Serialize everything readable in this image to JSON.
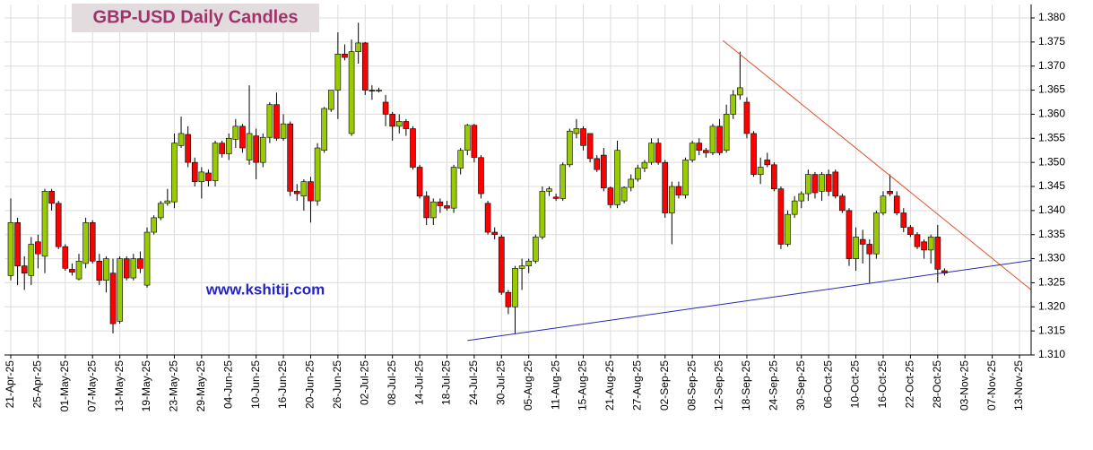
{
  "chart_data": {
    "type": "candlestick",
    "title": "GBP-USD Daily Candles",
    "watermark": "www.kshitij.com",
    "categories": [
      "21-Apr-25",
      null,
      null,
      null,
      "25-Apr-25",
      null,
      null,
      null,
      "01-May-25",
      null,
      null,
      null,
      "07-May-25",
      null,
      null,
      null,
      "13-May-25",
      null,
      null,
      null,
      "19-May-25",
      null,
      null,
      null,
      "23-May-25",
      null,
      null,
      null,
      "29-May-25",
      null,
      null,
      null,
      "04-Jun-25",
      null,
      null,
      null,
      "10-Jun-25",
      null,
      null,
      null,
      "16-Jun-25",
      null,
      null,
      null,
      "20-Jun-25",
      null,
      null,
      null,
      "26-Jun-25",
      null,
      null,
      null,
      "02-Jul-25",
      null,
      null,
      null,
      "08-Jul-25",
      null,
      null,
      null,
      "14-Jul-25",
      null,
      null,
      null,
      "18-Jul-25",
      null,
      null,
      null,
      "24-Jul-25",
      null,
      null,
      null,
      "30-Jul-25",
      null,
      null,
      null,
      "05-Aug-25",
      null,
      null,
      null,
      "11-Aug-25",
      null,
      null,
      null,
      "15-Aug-25",
      null,
      null,
      null,
      "21-Aug-25",
      null,
      null,
      null,
      "27-Aug-25",
      null,
      null,
      null,
      "02-Sep-25",
      null,
      null,
      null,
      "08-Sep-25",
      null,
      null,
      null,
      "12-Sep-25",
      null,
      null,
      null,
      "18-Sep-25",
      null,
      null,
      null,
      "24-Sep-25",
      null,
      null,
      null,
      "30-Sep-25",
      null,
      null,
      null,
      "06-Oct-25",
      null,
      null,
      null,
      "10-Oct-25",
      null,
      null,
      null,
      "16-Oct-25",
      null,
      null,
      null,
      "22-Oct-25",
      null,
      null,
      null,
      "28-Oct-25",
      null,
      null,
      null,
      "03-Nov-25",
      null,
      null,
      null,
      "07-Nov-25",
      null,
      null,
      null,
      "13-Nov-25"
    ],
    "open": [
      1.3265,
      1.3375,
      1.3285,
      1.3265,
      1.3335,
      1.3305,
      1.344,
      1.3415,
      1.3325,
      1.3278,
      1.3258,
      1.329,
      1.3375,
      1.3295,
      1.3255,
      1.327,
      1.317,
      1.33,
      1.326,
      1.33,
      1.3245,
      1.3355,
      1.3385,
      1.3415,
      1.3418,
      1.3535,
      1.3558,
      1.35,
      1.346,
      1.3478,
      1.3462,
      1.354,
      1.3518,
      1.3548,
      1.3575,
      1.3505,
      1.3555,
      1.35,
      1.3552,
      1.362,
      1.355,
      1.358,
      1.344,
      1.343,
      1.346,
      1.342,
      1.3525,
      1.361,
      1.365,
      1.3725,
      1.356,
      1.373,
      1.3748,
      1.365,
      1.3648,
      1.3625,
      1.36,
      1.3575,
      1.3585,
      1.357,
      1.349,
      1.343,
      1.3385,
      1.3418,
      1.341,
      1.3405,
      1.3488,
      1.3525,
      1.3577,
      1.351,
      1.3415,
      1.3355,
      1.3345,
      1.323,
      1.32,
      1.328,
      1.3285,
      1.3295,
      1.3345,
      1.344,
      1.3428,
      1.3425,
      1.3495,
      1.356,
      1.357,
      1.356,
      1.3508,
      1.3515,
      1.3447,
      1.3412,
      1.342,
      1.3448,
      1.3465,
      1.3488,
      1.35,
      1.354,
      1.35,
      1.3395,
      1.345,
      1.3432,
      1.3505,
      1.354,
      1.3525,
      1.352,
      1.3575,
      1.3525,
      1.36,
      1.364,
      1.3625,
      1.356,
      1.3475,
      1.3505,
      1.3495,
      1.3445,
      1.333,
      1.3392,
      1.342,
      1.3435,
      1.3475,
      1.344,
      1.3475,
      1.348,
      1.343,
      1.34,
      1.33,
      1.334,
      1.333,
      1.331,
      1.3395,
      1.344,
      1.343,
      1.3395,
      1.3365,
      1.335,
      1.3335,
      1.3318,
      1.3345,
      1.3275,
      null,
      null,
      null,
      null,
      null,
      null,
      null,
      null,
      null,
      null,
      null
    ],
    "high": [
      1.3425,
      1.3385,
      1.3305,
      1.3345,
      1.335,
      1.3445,
      1.3445,
      1.342,
      1.333,
      1.329,
      1.331,
      1.3385,
      1.338,
      1.331,
      1.3305,
      1.33,
      1.3305,
      1.3305,
      1.331,
      1.3315,
      1.3365,
      1.339,
      1.342,
      1.3445,
      1.356,
      1.3595,
      1.3575,
      1.351,
      1.349,
      1.3485,
      1.3545,
      1.3545,
      1.356,
      1.359,
      1.358,
      1.366,
      1.357,
      1.356,
      1.3625,
      1.3645,
      1.36,
      1.3585,
      1.3455,
      1.3465,
      1.347,
      1.354,
      1.3615,
      1.365,
      1.377,
      1.3745,
      1.3755,
      1.379,
      1.375,
      1.366,
      1.3655,
      1.364,
      1.3605,
      1.36,
      1.359,
      1.3575,
      1.3495,
      1.344,
      1.3425,
      1.3425,
      1.342,
      1.3495,
      1.353,
      1.358,
      1.358,
      1.3515,
      1.342,
      1.3365,
      1.335,
      1.3235,
      1.3285,
      1.33,
      1.33,
      1.335,
      1.345,
      1.345,
      1.3435,
      1.35,
      1.357,
      1.359,
      1.3575,
      1.356,
      1.3515,
      1.353,
      1.345,
      1.3545,
      1.345,
      1.3475,
      1.3495,
      1.3505,
      1.355,
      1.355,
      1.3505,
      1.346,
      1.346,
      1.351,
      1.3545,
      1.355,
      1.353,
      1.358,
      1.359,
      1.362,
      1.365,
      1.373,
      1.3635,
      1.3565,
      1.351,
      1.352,
      1.35,
      1.345,
      1.34,
      1.343,
      1.344,
      1.3485,
      1.348,
      1.348,
      1.3485,
      1.3485,
      1.3435,
      1.3405,
      1.3365,
      1.336,
      1.334,
      1.34,
      1.344,
      1.3475,
      1.344,
      1.3405,
      1.337,
      1.3355,
      1.334,
      1.335,
      1.337,
      1.328,
      null,
      null,
      null,
      null,
      null,
      null,
      null,
      null,
      null,
      null,
      null
    ],
    "low": [
      1.3255,
      1.3245,
      1.3235,
      1.3245,
      1.328,
      1.327,
      1.34,
      1.332,
      1.3275,
      1.3265,
      1.3255,
      1.328,
      1.329,
      1.3245,
      1.323,
      1.3145,
      1.3165,
      1.3255,
      1.3255,
      1.327,
      1.324,
      1.335,
      1.338,
      1.341,
      1.3405,
      1.353,
      1.349,
      1.345,
      1.3425,
      1.345,
      1.345,
      1.351,
      1.3505,
      1.353,
      1.352,
      1.3495,
      1.3465,
      1.349,
      1.354,
      1.3545,
      1.3545,
      1.343,
      1.342,
      1.34,
      1.3375,
      1.341,
      1.352,
      1.3605,
      1.359,
      1.3712,
      1.3555,
      1.3705,
      1.364,
      1.363,
      1.3645,
      1.3575,
      1.3545,
      1.356,
      1.3555,
      1.3485,
      1.3425,
      1.337,
      1.337,
      1.3395,
      1.34,
      1.3395,
      1.3475,
      1.3515,
      1.35,
      1.3425,
      1.335,
      1.334,
      1.3225,
      1.3185,
      1.3145,
      1.3235,
      1.327,
      1.329,
      1.334,
      1.343,
      1.342,
      1.342,
      1.349,
      1.355,
      1.3525,
      1.35,
      1.348,
      1.344,
      1.3405,
      1.3405,
      1.3415,
      1.344,
      1.346,
      1.348,
      1.3495,
      1.3495,
      1.3385,
      1.333,
      1.3425,
      1.3425,
      1.35,
      1.3515,
      1.351,
      1.3515,
      1.3515,
      1.352,
      1.359,
      1.363,
      1.355,
      1.347,
      1.3455,
      1.349,
      1.344,
      1.332,
      1.3325,
      1.3385,
      1.3405,
      1.342,
      1.3425,
      1.342,
      1.343,
      1.3425,
      1.3395,
      1.3285,
      1.3275,
      1.329,
      1.325,
      1.33,
      1.339,
      1.343,
      1.339,
      1.3355,
      1.3345,
      1.332,
      1.33,
      1.329,
      1.325,
      1.3265,
      null,
      null,
      null,
      null,
      null,
      null,
      null,
      null,
      null,
      null,
      null
    ],
    "close": [
      1.3375,
      1.3285,
      1.327,
      1.333,
      1.331,
      1.344,
      1.3415,
      1.3325,
      1.328,
      1.3272,
      1.3295,
      1.3375,
      1.3295,
      1.3255,
      1.33,
      1.3165,
      1.33,
      1.326,
      1.33,
      1.328,
      1.3355,
      1.3385,
      1.3415,
      1.342,
      1.354,
      1.356,
      1.35,
      1.346,
      1.348,
      1.3462,
      1.354,
      1.3518,
      1.355,
      1.3575,
      1.353,
      1.356,
      1.35,
      1.3552,
      1.362,
      1.355,
      1.358,
      1.344,
      1.3435,
      1.346,
      1.342,
      1.353,
      1.3612,
      1.365,
      1.3725,
      1.3718,
      1.373,
      1.3748,
      1.365,
      1.3648,
      1.365,
      1.36,
      1.3575,
      1.3585,
      1.357,
      1.349,
      1.343,
      1.3385,
      1.3418,
      1.341,
      1.3405,
      1.349,
      1.3525,
      1.3577,
      1.351,
      1.3435,
      1.3355,
      1.335,
      1.323,
      1.32,
      1.328,
      1.3285,
      1.3295,
      1.3345,
      1.344,
      1.3445,
      1.3425,
      1.3495,
      1.3565,
      1.357,
      1.3535,
      1.3508,
      1.3485,
      1.3447,
      1.3412,
      1.3525,
      1.3448,
      1.3465,
      1.3488,
      1.35,
      1.354,
      1.35,
      1.3395,
      1.345,
      1.3432,
      1.3505,
      1.354,
      1.3525,
      1.352,
      1.3575,
      1.352,
      1.36,
      1.364,
      1.3655,
      1.356,
      1.3475,
      1.349,
      1.3495,
      1.3445,
      1.333,
      1.3392,
      1.342,
      1.3435,
      1.3475,
      1.3437,
      1.3475,
      1.344,
      1.343,
      1.34,
      1.33,
      1.3345,
      1.333,
      1.331,
      1.3395,
      1.343,
      1.3435,
      1.3395,
      1.3365,
      1.335,
      1.3325,
      1.3318,
      1.3345,
      1.3278,
      1.327,
      null,
      null,
      null,
      null,
      null,
      null,
      null,
      null,
      null,
      null,
      null
    ],
    "up_color": "#99cc00",
    "down_color": "#ff0000",
    "ylim": [
      1.31,
      1.38
    ],
    "yticks": [
      {
        "value": 1.31,
        "label": "1.310"
      },
      1.315,
      {
        "value": 1.32,
        "label": "1.320"
      },
      1.325,
      {
        "value": 1.33,
        "label": "1.330"
      },
      1.335,
      {
        "value": 1.34,
        "label": "1.340"
      },
      1.345,
      {
        "value": 1.35,
        "label": "1.350"
      },
      1.355,
      {
        "value": 1.36,
        "label": "1.360"
      },
      1.365,
      {
        "value": 1.37,
        "label": "1.370"
      },
      1.375,
      {
        "value": 1.38,
        "label": "1.380"
      }
    ],
    "grid": true,
    "trendlines": [
      {
        "color": "#e05030",
        "x": [
          104.5,
          150
        ],
        "y": [
          1.3753,
          1.3232
        ]
      },
      {
        "color": "#2828b0",
        "x": [
          67,
          150
        ],
        "y": [
          1.313,
          1.3297
        ]
      }
    ]
  }
}
